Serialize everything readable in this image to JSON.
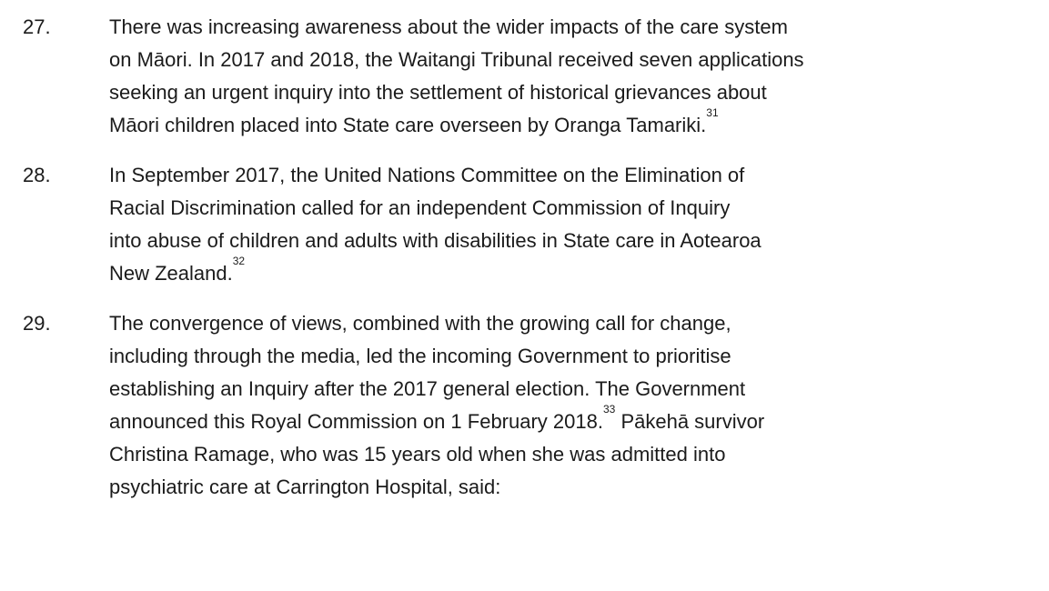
{
  "paragraphs": [
    {
      "number": "27.",
      "lines": [
        "There was increasing awareness about the wider impacts of the care system",
        "on Māori. In 2017 and 2018, the Waitangi Tribunal received seven applications",
        "seeking an urgent inquiry into the settlement of historical grievances about",
        [
          "Māori children placed into State care overseen by Oranga Tamariki.",
          {
            "sup": "31"
          }
        ]
      ]
    },
    {
      "number": "28.",
      "lines": [
        "In September 2017, the United Nations Committee on the Elimination of",
        "Racial Discrimination called for an independent Commission of Inquiry",
        "into abuse of children and adults with disabilities in State care in Aotearoa",
        [
          "New Zealand.",
          {
            "sup": "32"
          }
        ]
      ]
    },
    {
      "number": "29.",
      "lines": [
        "The convergence of views, combined with the growing call for change,",
        "including through the media, led the incoming Government to prioritise",
        "establishing an Inquiry after the 2017 general election. The Government",
        [
          "announced this Royal Commission on 1 February 2018.",
          {
            "sup": "33"
          },
          " Pākehā survivor"
        ],
        "Christina Ramage, who was 15 years old when she was admitted into",
        "psychiatric care at Carrington Hospital, said:"
      ]
    }
  ]
}
